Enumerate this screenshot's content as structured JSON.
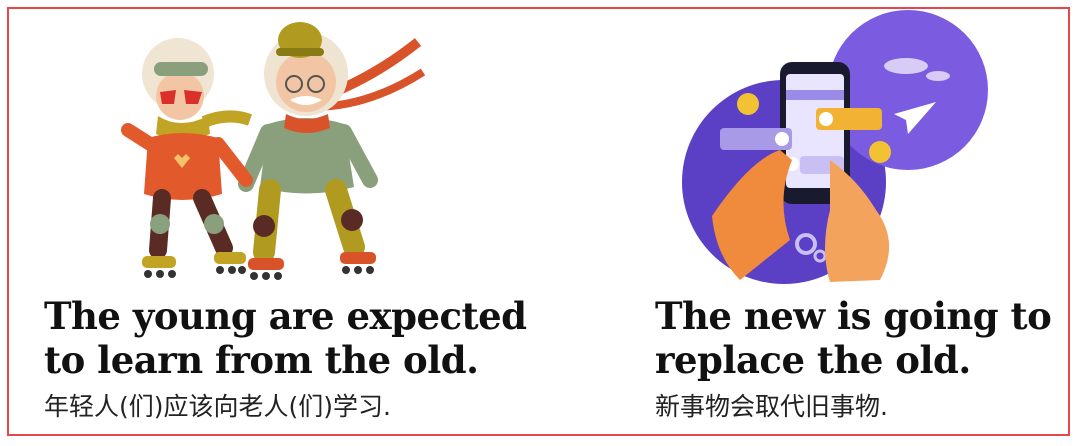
{
  "panels": [
    {
      "illustration": "elderly-couple-rollerskating",
      "title_line1": "The young are expected",
      "title_line2": "to learn from the old.",
      "subtitle": "年轻人(们)应该向老人(们)学习."
    },
    {
      "illustration": "hands-holding-smartphone-chat",
      "title_line1": "The new is going to",
      "title_line2": "replace the old.",
      "subtitle": "新事物会取代旧事物."
    }
  ],
  "colors": {
    "frame": "#e8474a",
    "title": "#111111",
    "subtitle": "#222222",
    "purple_bg": "#5b3fc4",
    "orange": "#e2592c",
    "mustard": "#b09a1f"
  }
}
